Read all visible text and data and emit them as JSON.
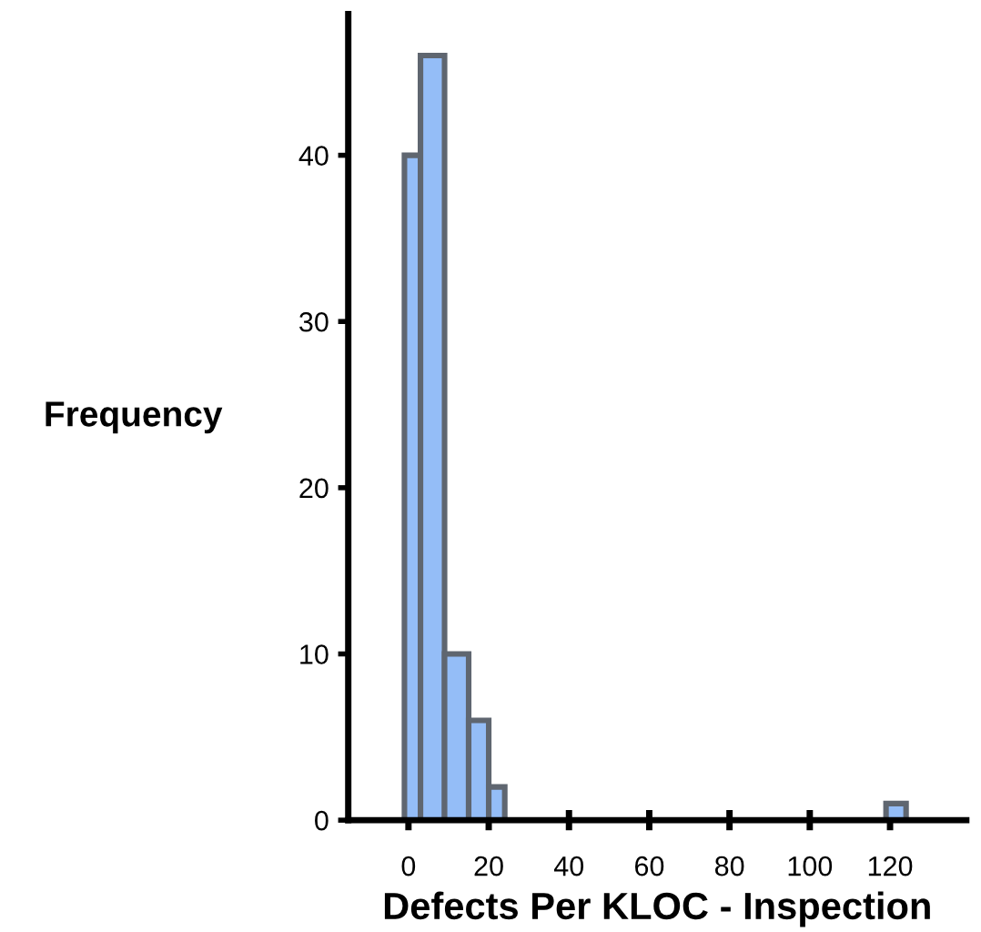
{
  "chart_data": {
    "type": "histogram",
    "xlabel": "Defects Per KLOC - Inspection",
    "ylabel": "Frequency",
    "bins": [
      -1,
      3,
      9,
      15,
      20,
      24,
      119,
      124
    ],
    "values": [
      40,
      46,
      10,
      6,
      2,
      0,
      1
    ],
    "color": "#94bdf7",
    "xlim": [
      -15,
      139
    ],
    "xticks": [
      0,
      20,
      40,
      60,
      80,
      100,
      120
    ],
    "ylim": [
      0,
      48.5
    ],
    "yticks": [
      0,
      10,
      20,
      30,
      40
    ],
    "grid": false,
    "legend": false
  }
}
